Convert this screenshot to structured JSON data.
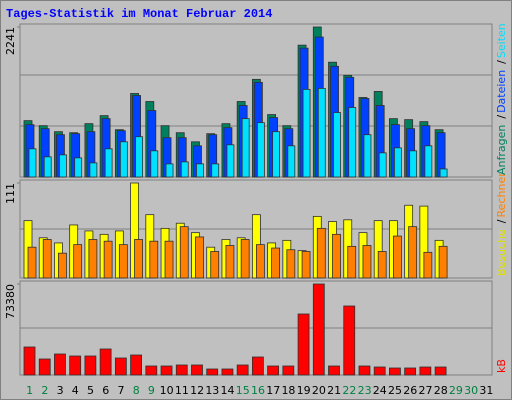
{
  "chart_data": {
    "type": "bar",
    "title": "Tages-Statistik im Monat Februar 2014",
    "categories": [
      "1",
      "2",
      "3",
      "4",
      "5",
      "6",
      "7",
      "8",
      "9",
      "10",
      "11",
      "12",
      "13",
      "14",
      "15",
      "16",
      "17",
      "18",
      "19",
      "20",
      "21",
      "22",
      "23",
      "24",
      "25",
      "26",
      "27",
      "28",
      "29",
      "30",
      "31"
    ],
    "category_colors": [
      "#008040",
      "#008040",
      "#000000",
      "#000000",
      "#000000",
      "#000000",
      "#000000",
      "#008040",
      "#008040",
      "#000000",
      "#000000",
      "#000000",
      "#000000",
      "#000000",
      "#008040",
      "#008040",
      "#000000",
      "#000000",
      "#000000",
      "#000000",
      "#000000",
      "#008040",
      "#008040",
      "#000000",
      "#000000",
      "#000000",
      "#000000",
      "#000000",
      "#008040",
      "#008040",
      "#000000"
    ],
    "legend_separator": "/",
    "panels": [
      {
        "ylim": [
          0,
          2241
        ],
        "yticks": [
          2241
        ],
        "series": [
          {
            "name": "Anfragen",
            "color": "#00805c",
            "values": [
              842,
              767,
              677,
              662,
              797,
              917,
              707,
              1248,
              1128,
              767,
              662,
              526,
              647,
              797,
              1128,
              1459,
              933,
              767,
              1970,
              2241,
              1715,
              1519,
              1188,
              1278,
              872,
              857,
              827,
              707,
              null,
              null,
              null
            ]
          },
          {
            "name": "Dateien",
            "color": "#0040ff",
            "values": [
              782,
              722,
              632,
              647,
              677,
              872,
              692,
              1218,
              993,
              587,
              587,
              466,
              632,
              737,
              1068,
              1414,
              887,
              722,
              1925,
              2091,
              1654,
              1489,
              1173,
              1068,
              782,
              722,
              767,
              662,
              null,
              null,
              null
            ]
          },
          {
            "name": "Seiten",
            "color": "#00e0ff",
            "values": [
              421,
              301,
              331,
              286,
              211,
              421,
              526,
              602,
              391,
              196,
              226,
              196,
              196,
              481,
              872,
              812,
              677,
              466,
              1309,
              1324,
              963,
              1038,
              632,
              361,
              436,
              391,
              466,
              120,
              null,
              null,
              null
            ]
          }
        ]
      },
      {
        "ylim": [
          0,
          111
        ],
        "yticks": [
          111
        ],
        "series": [
          {
            "name": "Besuche",
            "color": "#ffff00",
            "values": [
              67,
              47,
              41,
              62,
              55,
              51,
              55,
              111,
              74,
              58,
              64,
              53,
              36,
              45,
              47,
              74,
              41,
              44,
              32,
              72,
              66,
              68,
              53,
              67,
              67,
              85,
              84,
              44,
              null,
              null,
              null
            ]
          },
          {
            "name": "Rechner",
            "color": "#ff8000",
            "values": [
              36,
              45,
              29,
              39,
              45,
              43,
              39,
              45,
              43,
              43,
              60,
              48,
              31,
              38,
              45,
              39,
              35,
              33,
              31,
              58,
              51,
              37,
              38,
              31,
              49,
              60,
              30,
              37,
              null,
              null,
              null
            ]
          }
        ]
      },
      {
        "ylim": [
          0,
          73380
        ],
        "yticks": [
          73380
        ],
        "series": [
          {
            "name": "kB",
            "color": "#ff0000",
            "values": [
              22578,
              12902,
              16934,
              15321,
              15321,
              20966,
              13708,
              16127,
              7257,
              7257,
              8064,
              8064,
              4838,
              4838,
              8064,
              14515,
              7257,
              7257,
              49189,
              73380,
              7257,
              55640,
              7257,
              6451,
              5645,
              5645,
              6451,
              6451,
              null,
              null,
              null
            ]
          }
        ]
      }
    ]
  }
}
